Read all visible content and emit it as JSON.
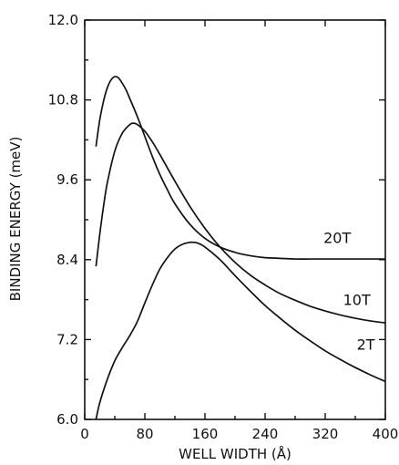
{
  "chart_data": {
    "type": "line",
    "xlabel": "WELL WIDTH (Å)",
    "ylabel": "BINDING ENERGY (meV)",
    "xlim": [
      0,
      400
    ],
    "ylim": [
      6.0,
      12.0
    ],
    "x_ticks": [
      0,
      80,
      160,
      240,
      320,
      400
    ],
    "x_tick_labels": [
      "0",
      "80",
      "160",
      "240",
      "320",
      "400"
    ],
    "y_ticks": [
      6.0,
      7.2,
      8.4,
      9.6,
      10.8,
      12.0
    ],
    "y_tick_labels": [
      "6.0",
      "7.2",
      "8.4",
      "9.6",
      "10.8",
      "12.0"
    ],
    "grid": false,
    "series": [
      {
        "name": "20T",
        "x": [
          15,
          20,
          25,
          30,
          35,
          40,
          45,
          50,
          55,
          60,
          70,
          80,
          90,
          100,
          110,
          120,
          140,
          160,
          180,
          200,
          220,
          240,
          260,
          280,
          300,
          320,
          340,
          360,
          380,
          400
        ],
        "y": [
          10.1,
          10.5,
          10.78,
          10.98,
          11.1,
          11.15,
          11.13,
          11.05,
          10.95,
          10.82,
          10.55,
          10.25,
          9.95,
          9.68,
          9.45,
          9.24,
          8.93,
          8.72,
          8.59,
          8.51,
          8.46,
          8.43,
          8.42,
          8.41,
          8.41,
          8.41,
          8.41,
          8.41,
          8.41,
          8.41
        ]
      },
      {
        "name": "10T",
        "x": [
          15,
          20,
          25,
          30,
          40,
          50,
          60,
          65,
          70,
          80,
          90,
          100,
          120,
          140,
          160,
          180,
          200,
          220,
          240,
          260,
          280,
          300,
          320,
          340,
          360,
          380,
          400
        ],
        "y": [
          8.3,
          8.78,
          9.2,
          9.55,
          10.03,
          10.3,
          10.43,
          10.45,
          10.43,
          10.33,
          10.17,
          9.98,
          9.58,
          9.2,
          8.87,
          8.59,
          8.36,
          8.17,
          8.02,
          7.89,
          7.79,
          7.7,
          7.63,
          7.57,
          7.52,
          7.48,
          7.45
        ]
      },
      {
        "name": "2T",
        "x": [
          15,
          20,
          30,
          40,
          50,
          60,
          70,
          80,
          90,
          100,
          110,
          120,
          130,
          140,
          145,
          150,
          160,
          180,
          200,
          220,
          240,
          260,
          280,
          300,
          320,
          340,
          360,
          380,
          400
        ],
        "y": [
          6.0,
          6.25,
          6.6,
          6.88,
          7.08,
          7.26,
          7.47,
          7.75,
          8.02,
          8.26,
          8.43,
          8.56,
          8.63,
          8.66,
          8.66,
          8.65,
          8.59,
          8.4,
          8.16,
          7.93,
          7.71,
          7.52,
          7.34,
          7.18,
          7.03,
          6.9,
          6.78,
          6.67,
          6.57
        ]
      }
    ]
  }
}
